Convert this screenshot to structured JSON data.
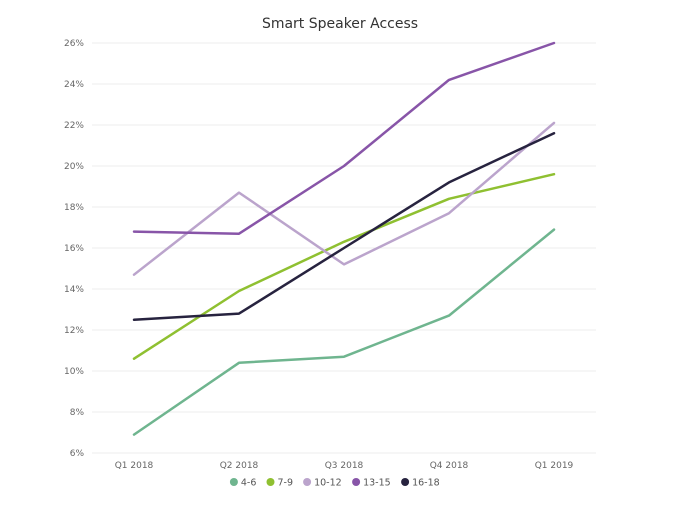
{
  "chart_data": {
    "type": "line",
    "title": "Smart Speaker Access",
    "xlabel": "",
    "ylabel": "",
    "categories": [
      "Q1 2018",
      "Q2 2018",
      "Q3 2018",
      "Q4 2018",
      "Q1 2019"
    ],
    "ylim": [
      6,
      26
    ],
    "yticks": [
      6,
      8,
      10,
      12,
      14,
      16,
      18,
      20,
      22,
      24,
      26
    ],
    "ytick_labels": [
      "6%",
      "8%",
      "10%",
      "12%",
      "14%",
      "16%",
      "18%",
      "20%",
      "22%",
      "24%",
      "26%"
    ],
    "grid": true,
    "legend_position": "bottom",
    "series": [
      {
        "name": "4-6",
        "color": "#6fb58f",
        "values": [
          6.9,
          10.4,
          10.7,
          12.7,
          16.9
        ]
      },
      {
        "name": "7-9",
        "color": "#8fc031",
        "values": [
          10.6,
          13.9,
          16.3,
          18.4,
          19.6
        ]
      },
      {
        "name": "10-12",
        "color": "#bba4cc",
        "values": [
          14.7,
          18.7,
          15.2,
          17.7,
          22.1
        ]
      },
      {
        "name": "13-15",
        "color": "#8855a8",
        "values": [
          16.8,
          16.7,
          20.0,
          24.2,
          26.0
        ]
      },
      {
        "name": "16-18",
        "color": "#27233f",
        "values": [
          12.5,
          12.8,
          16.0,
          19.2,
          21.6
        ]
      }
    ]
  }
}
